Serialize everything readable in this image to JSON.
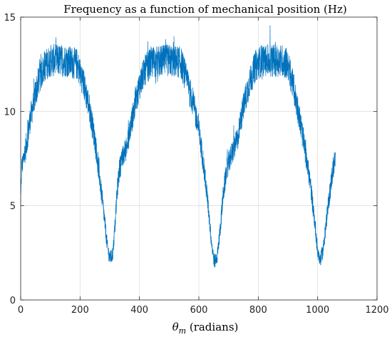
{
  "chart_data": {
    "type": "line",
    "title": "Frequency as a function of mechanical position (Hz)",
    "xlabel": {
      "symbol": "θ",
      "subscript": "m",
      "rest": " (radians)"
    },
    "ylabel": "",
    "xlim": [
      0,
      1200
    ],
    "ylim": [
      0,
      15
    ],
    "x_ticks": [
      0,
      200,
      400,
      600,
      800,
      1000,
      1200
    ],
    "y_ticks": [
      0,
      5,
      10,
      15
    ],
    "grid": true,
    "line_color": "#0072BD",
    "series": [
      {
        "x_range": [
          0,
          1060
        ],
        "noise_amplitude": 0.55,
        "envelope": [
          [
            0,
            4.9
          ],
          [
            3,
            7.0
          ],
          [
            10,
            7.5
          ],
          [
            20,
            8.3
          ],
          [
            30,
            9.4
          ],
          [
            45,
            10.6
          ],
          [
            60,
            11.6
          ],
          [
            80,
            12.4
          ],
          [
            100,
            12.7
          ],
          [
            150,
            12.7
          ],
          [
            190,
            12.5
          ],
          [
            210,
            11.6
          ],
          [
            230,
            10.3
          ],
          [
            250,
            8.5
          ],
          [
            265,
            6.6
          ],
          [
            280,
            4.6
          ],
          [
            292,
            2.8
          ],
          [
            300,
            2.2
          ],
          [
            310,
            2.4
          ],
          [
            318,
            4.0
          ],
          [
            325,
            5.8
          ],
          [
            333,
            7.0
          ],
          [
            345,
            7.6
          ],
          [
            360,
            8.3
          ],
          [
            380,
            10.0
          ],
          [
            400,
            11.4
          ],
          [
            420,
            12.2
          ],
          [
            440,
            12.6
          ],
          [
            500,
            12.7
          ],
          [
            540,
            12.6
          ],
          [
            560,
            11.6
          ],
          [
            580,
            10.5
          ],
          [
            600,
            9.0
          ],
          [
            615,
            7.3
          ],
          [
            630,
            5.2
          ],
          [
            643,
            3.0
          ],
          [
            652,
            2.0
          ],
          [
            662,
            2.3
          ],
          [
            672,
            3.8
          ],
          [
            682,
            5.6
          ],
          [
            695,
            7.0
          ],
          [
            710,
            7.7
          ],
          [
            730,
            8.5
          ],
          [
            750,
            10.3
          ],
          [
            770,
            11.5
          ],
          [
            790,
            12.4
          ],
          [
            810,
            12.7
          ],
          [
            880,
            12.7
          ],
          [
            900,
            12.5
          ],
          [
            915,
            11.5
          ],
          [
            935,
            10.0
          ],
          [
            955,
            8.2
          ],
          [
            975,
            6.2
          ],
          [
            990,
            4.2
          ],
          [
            1000,
            2.6
          ],
          [
            1008,
            2.1
          ],
          [
            1018,
            2.6
          ],
          [
            1030,
            4.3
          ],
          [
            1042,
            5.8
          ],
          [
            1052,
            7.0
          ],
          [
            1060,
            7.5
          ]
        ]
      }
    ]
  }
}
